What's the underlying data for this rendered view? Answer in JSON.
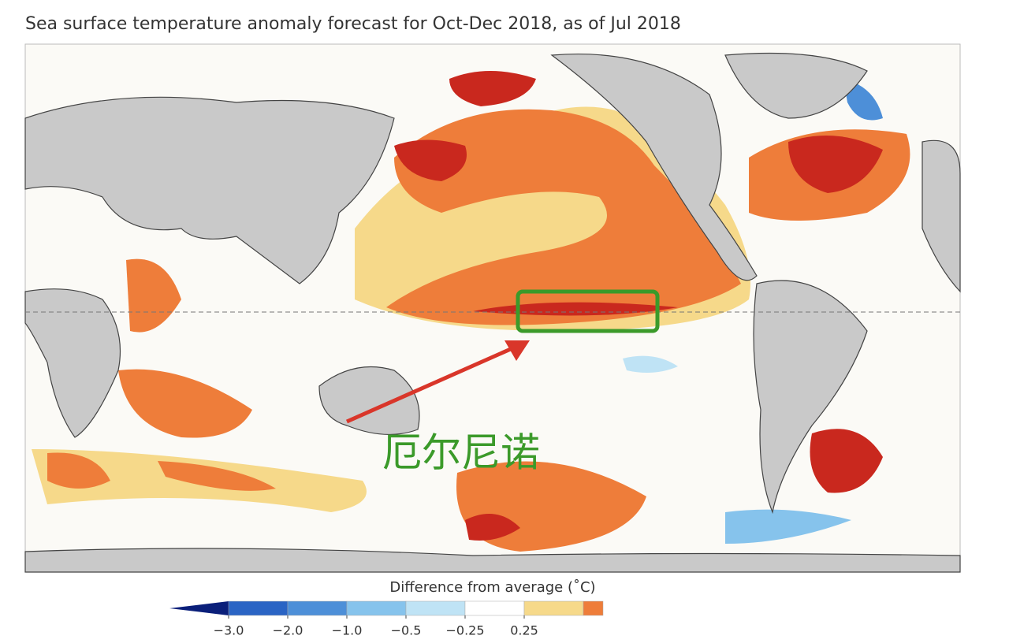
{
  "title": "Sea surface temperature anomaly forecast for Oct-Dec 2018, as of Jul 2018",
  "annotation": "厄尔尼诺",
  "colorbar": {
    "label": "Difference from average (˚C)",
    "ticks": [
      {
        "value": -3,
        "label": "−3.0"
      },
      {
        "value": -2,
        "label": "−2.0"
      },
      {
        "value": -1,
        "label": "−1.0"
      },
      {
        "value": -0.5,
        "label": "−0.5"
      },
      {
        "value": -0.25,
        "label": "−0.25"
      },
      0.25
    ],
    "colors": [
      "#0a1f7a",
      "#2a64c4",
      "#4d8fd8",
      "#86c3ec",
      "#bfe3f5",
      "#ffffff",
      "#f6d98a",
      "#ee7d3a"
    ]
  }
}
